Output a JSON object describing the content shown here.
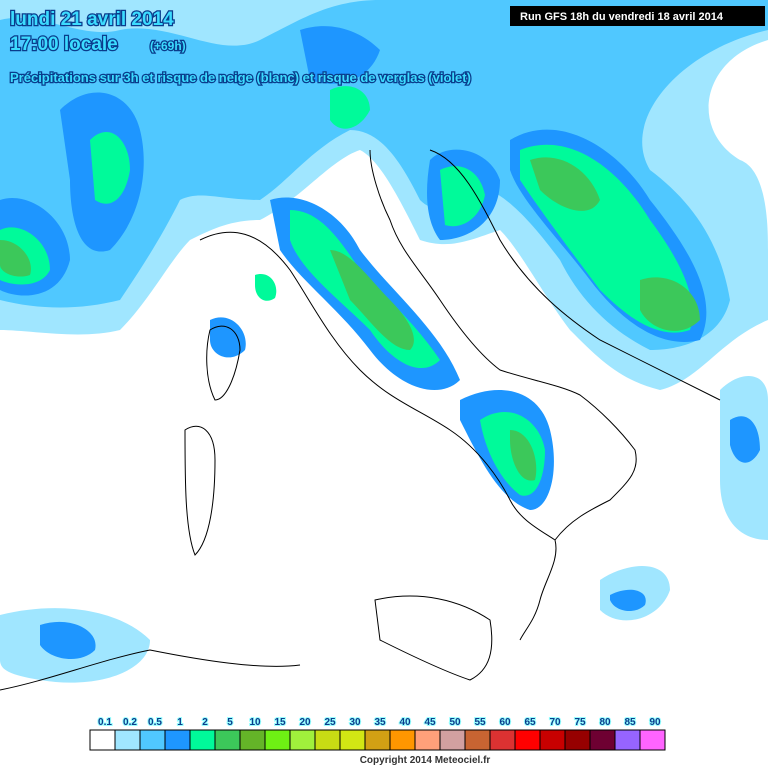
{
  "header": {
    "date": "lundi 21 avril 2014",
    "time": "17:00 locale",
    "offset": "(+69h)",
    "subtitle": "Précipitations sur 3h et risque de neige (blanc) et risque de verglas (violet)",
    "run": "Run GFS 18h du vendredi 18 avril 2014"
  },
  "legend": {
    "labels": [
      0.1,
      0.2,
      0.5,
      1,
      2,
      5,
      10,
      15,
      20,
      25,
      30,
      35,
      40,
      45,
      50,
      55,
      60,
      65,
      70,
      75,
      80,
      85,
      90
    ],
    "colors": [
      "#ffffff",
      "#a0e6ff",
      "#50c8ff",
      "#1e96ff",
      "#00fa9a",
      "#3cc85a",
      "#64b428",
      "#6ef014",
      "#a0f03c",
      "#c8dc14",
      "#d2e614",
      "#d2a014",
      "#ff9600",
      "#ffa07a",
      "#d2a0a0",
      "#c86432",
      "#dc3232",
      "#ff0000",
      "#c80000",
      "#960000",
      "#6e0032",
      "#9664ff",
      "#ff64ff"
    ]
  },
  "copyright": "Copyright 2014 Meteociel.fr"
}
